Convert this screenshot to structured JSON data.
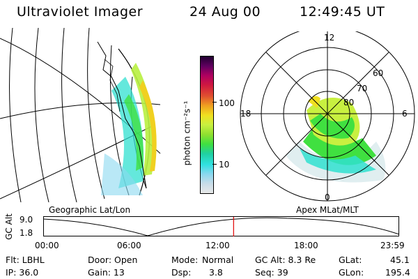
{
  "header": {
    "title": "Ultraviolet Imager",
    "date": "24 Aug 00",
    "time": "12:49:45 UT"
  },
  "colorbar": {
    "unit_label": "photon cm⁻²s⁻¹",
    "tick_100": "100",
    "tick_10": "10",
    "colors": [
      "#e8e8e8",
      "#c8dce8",
      "#8ad8f0",
      "#30e0e0",
      "#20d0a0",
      "#40e040",
      "#90e030",
      "#c8f040",
      "#f0e020",
      "#f0a020",
      "#e05030",
      "#d01840",
      "#b00060",
      "#600060",
      "#200030"
    ]
  },
  "left_panel": {
    "label": "Geographic Lat/Lon"
  },
  "right_panel": {
    "label": "Apex MLat/MLT",
    "mlt_labels": {
      "top": "12",
      "left": "18",
      "right": "6",
      "bottom": "0"
    },
    "lat_labels": [
      "60",
      "70",
      "80"
    ]
  },
  "altitude_plot": {
    "y_label": "GC Alt",
    "y_max": "9.0",
    "y_min": "1.8",
    "x_ticks": [
      "00:00",
      "06:00",
      "12:00",
      "18:00",
      "23:59"
    ],
    "current_time_fraction": 0.535,
    "marker_color": "#e00000"
  },
  "info": {
    "row1": {
      "flt": "Flt: LBHL",
      "door": "Door: Open",
      "mode_label": "Mode:",
      "mode_value": "Normal",
      "gcalt": "GC Alt: 8.3 Re",
      "glat_label": "GLat:",
      "glat_value": "45.1"
    },
    "row2": {
      "ip": "IP: 36.0",
      "gain": "Gain: 13",
      "dsp_label": "Dsp:",
      "dsp_value": "3.8",
      "seq": "Seq: 39",
      "glon_label": "GLon:",
      "glon_value": "195.4"
    }
  }
}
